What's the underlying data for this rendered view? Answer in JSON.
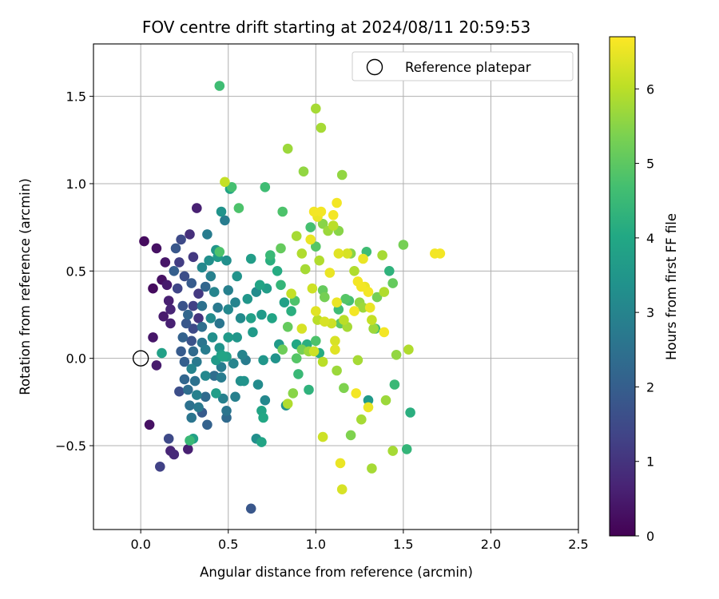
{
  "chart_data": {
    "type": "scatter",
    "title": "FOV centre drift starting at 2024/08/11 20:59:53",
    "xlabel": "Angular distance from reference (arcmin)",
    "ylabel": "Rotation from reference (arcmin)",
    "xlim": [
      -0.27,
      2.5
    ],
    "ylim": [
      -0.98,
      1.8
    ],
    "xticks": [
      "0.0",
      "0.5",
      "1.0",
      "1.5",
      "2.0",
      "2.5"
    ],
    "yticks": [
      "−0.5",
      "0.0",
      "0.5",
      "1.0",
      "1.5"
    ],
    "grid": true,
    "legend": {
      "position": "upper-right",
      "entries": [
        "Reference platepar"
      ]
    },
    "reference_point": {
      "x": 0.0,
      "y": 0.0
    },
    "colorbar": {
      "label": "Hours from first FF file",
      "min": 0,
      "max": 6.7,
      "ticks": [
        "0",
        "1",
        "2",
        "3",
        "4",
        "5",
        "6"
      ],
      "colormap": "viridis"
    },
    "points": [
      {
        "x": 0.02,
        "y": 0.67,
        "h": 0.2
      },
      {
        "x": 0.09,
        "y": 0.63,
        "h": 0.3
      },
      {
        "x": 0.14,
        "y": 0.55,
        "h": 0.4
      },
      {
        "x": 0.12,
        "y": 0.45,
        "h": 0.3
      },
      {
        "x": 0.15,
        "y": 0.42,
        "h": 0.5
      },
      {
        "x": 0.07,
        "y": 0.4,
        "h": 0.2
      },
      {
        "x": 0.16,
        "y": 0.33,
        "h": 0.6
      },
      {
        "x": 0.17,
        "y": 0.28,
        "h": 0.7
      },
      {
        "x": 0.13,
        "y": 0.24,
        "h": 0.5
      },
      {
        "x": 0.17,
        "y": 0.2,
        "h": 0.6
      },
      {
        "x": 0.07,
        "y": 0.12,
        "h": 0.4
      },
      {
        "x": 0.09,
        "y": -0.04,
        "h": 0.5
      },
      {
        "x": 0.05,
        "y": -0.38,
        "h": 0.3
      },
      {
        "x": 0.17,
        "y": -0.53,
        "h": 0.7
      },
      {
        "x": 0.19,
        "y": -0.55,
        "h": 0.8
      },
      {
        "x": 0.27,
        "y": -0.52,
        "h": 0.6
      },
      {
        "x": 0.11,
        "y": -0.62,
        "h": 1.3
      },
      {
        "x": 0.16,
        "y": -0.46,
        "h": 1.5
      },
      {
        "x": 0.32,
        "y": 0.86,
        "h": 0.6
      },
      {
        "x": 0.28,
        "y": 0.71,
        "h": 0.9
      },
      {
        "x": 0.23,
        "y": 0.68,
        "h": 1.5
      },
      {
        "x": 0.2,
        "y": 0.63,
        "h": 1.8
      },
      {
        "x": 0.22,
        "y": 0.55,
        "h": 1.2
      },
      {
        "x": 0.3,
        "y": 0.58,
        "h": 1.1
      },
      {
        "x": 0.19,
        "y": 0.5,
        "h": 2.0
      },
      {
        "x": 0.25,
        "y": 0.47,
        "h": 1.6
      },
      {
        "x": 0.21,
        "y": 0.4,
        "h": 1.4
      },
      {
        "x": 0.29,
        "y": 0.43,
        "h": 1.9
      },
      {
        "x": 0.33,
        "y": 0.37,
        "h": 1.1
      },
      {
        "x": 0.24,
        "y": 0.3,
        "h": 1.7
      },
      {
        "x": 0.3,
        "y": 0.3,
        "h": 1.3
      },
      {
        "x": 0.27,
        "y": 0.25,
        "h": 2.2
      },
      {
        "x": 0.33,
        "y": 0.23,
        "h": 1.0
      },
      {
        "x": 0.26,
        "y": 0.2,
        "h": 1.8
      },
      {
        "x": 0.3,
        "y": 0.17,
        "h": 1.5
      },
      {
        "x": 0.35,
        "y": 0.18,
        "h": 2.4
      },
      {
        "x": 0.24,
        "y": 0.12,
        "h": 2.1
      },
      {
        "x": 0.29,
        "y": 0.1,
        "h": 1.7
      },
      {
        "x": 0.35,
        "y": 0.09,
        "h": 2.6
      },
      {
        "x": 0.23,
        "y": 0.04,
        "h": 1.9
      },
      {
        "x": 0.3,
        "y": 0.04,
        "h": 2.3
      },
      {
        "x": 0.37,
        "y": 0.05,
        "h": 2.8
      },
      {
        "x": 0.25,
        "y": -0.02,
        "h": 2.0
      },
      {
        "x": 0.32,
        "y": -0.02,
        "h": 2.7
      },
      {
        "x": 0.29,
        "y": -0.06,
        "h": 3.0
      },
      {
        "x": 0.25,
        "y": -0.12,
        "h": 2.2
      },
      {
        "x": 0.31,
        "y": -0.13,
        "h": 2.5
      },
      {
        "x": 0.37,
        "y": -0.1,
        "h": 3.1
      },
      {
        "x": 0.22,
        "y": -0.19,
        "h": 1.6
      },
      {
        "x": 0.27,
        "y": -0.18,
        "h": 2.4
      },
      {
        "x": 0.32,
        "y": -0.21,
        "h": 2.9
      },
      {
        "x": 0.37,
        "y": -0.22,
        "h": 2.3
      },
      {
        "x": 0.28,
        "y": -0.27,
        "h": 2.5
      },
      {
        "x": 0.33,
        "y": -0.28,
        "h": 2.7
      },
      {
        "x": 0.29,
        "y": -0.34,
        "h": 2.6
      },
      {
        "x": 0.35,
        "y": -0.31,
        "h": 1.9
      },
      {
        "x": 0.38,
        "y": -0.38,
        "h": 2.1
      },
      {
        "x": 0.3,
        "y": -0.46,
        "h": 3.8
      },
      {
        "x": 0.35,
        "y": 0.3,
        "h": 2.5
      },
      {
        "x": 0.37,
        "y": 0.41,
        "h": 2.2
      },
      {
        "x": 0.4,
        "y": 0.47,
        "h": 2.9
      },
      {
        "x": 0.35,
        "y": 0.52,
        "h": 3.1
      },
      {
        "x": 0.39,
        "y": 0.56,
        "h": 3.3
      },
      {
        "x": 0.43,
        "y": 0.62,
        "h": 3.5
      },
      {
        "x": 0.38,
        "y": 0.71,
        "h": 2.8
      },
      {
        "x": 0.44,
        "y": 0.58,
        "h": 3.6
      },
      {
        "x": 0.42,
        "y": 0.38,
        "h": 3.0
      },
      {
        "x": 0.44,
        "y": 0.29,
        "h": 2.7
      },
      {
        "x": 0.4,
        "y": 0.23,
        "h": 3.2
      },
      {
        "x": 0.45,
        "y": 0.2,
        "h": 2.6
      },
      {
        "x": 0.41,
        "y": 0.12,
        "h": 3.3
      },
      {
        "x": 0.45,
        "y": 0.06,
        "h": 3.4
      },
      {
        "x": 0.43,
        "y": -0.01,
        "h": 3.6
      },
      {
        "x": 0.47,
        "y": 0.01,
        "h": 3.9
      },
      {
        "x": 0.42,
        "y": -0.1,
        "h": 2.4
      },
      {
        "x": 0.46,
        "y": -0.11,
        "h": 2.8
      },
      {
        "x": 0.43,
        "y": -0.2,
        "h": 3.7
      },
      {
        "x": 0.47,
        "y": -0.23,
        "h": 2.9
      },
      {
        "x": 0.49,
        "y": -0.3,
        "h": 2.6
      },
      {
        "x": 0.49,
        "y": -0.34,
        "h": 2.3
      },
      {
        "x": 0.49,
        "y": 0.01,
        "h": 3.8
      },
      {
        "x": 0.5,
        "y": 0.12,
        "h": 3.6
      },
      {
        "x": 0.5,
        "y": 0.28,
        "h": 3.1
      },
      {
        "x": 0.5,
        "y": 0.39,
        "h": 2.9
      },
      {
        "x": 0.49,
        "y": 0.56,
        "h": 3.3
      },
      {
        "x": 0.48,
        "y": 0.79,
        "h": 2.8
      },
      {
        "x": 0.46,
        "y": 0.84,
        "h": 3.4
      },
      {
        "x": 0.51,
        "y": 0.97,
        "h": 3.9
      },
      {
        "x": 0.48,
        "y": 1.01,
        "h": 6.1
      },
      {
        "x": 0.52,
        "y": 0.98,
        "h": 4.7
      },
      {
        "x": 0.56,
        "y": 0.86,
        "h": 4.8
      },
      {
        "x": 0.45,
        "y": 1.56,
        "h": 4.6
      },
      {
        "x": 0.45,
        "y": 0.61,
        "h": 4.8
      },
      {
        "x": 0.55,
        "y": 0.47,
        "h": 3.4
      },
      {
        "x": 0.54,
        "y": 0.32,
        "h": 3.0
      },
      {
        "x": 0.57,
        "y": 0.23,
        "h": 3.2
      },
      {
        "x": 0.55,
        "y": 0.12,
        "h": 3.5
      },
      {
        "x": 0.53,
        "y": -0.03,
        "h": 3.0
      },
      {
        "x": 0.57,
        "y": -0.13,
        "h": 3.3
      },
      {
        "x": 0.54,
        "y": -0.22,
        "h": 2.9
      },
      {
        "x": 0.59,
        "y": -0.13,
        "h": 3.4
      },
      {
        "x": 0.61,
        "y": 0.34,
        "h": 3.5
      },
      {
        "x": 0.63,
        "y": 0.57,
        "h": 3.7
      },
      {
        "x": 0.63,
        "y": 0.23,
        "h": 3.8
      },
      {
        "x": 0.64,
        "y": 0.15,
        "h": 3.6
      },
      {
        "x": 0.66,
        "y": 0.38,
        "h": 3.2
      },
      {
        "x": 0.68,
        "y": 0.42,
        "h": 3.9
      },
      {
        "x": 0.69,
        "y": 0.25,
        "h": 3.6
      },
      {
        "x": 0.72,
        "y": 0.4,
        "h": 3.7
      },
      {
        "x": 0.74,
        "y": 0.56,
        "h": 4.2
      },
      {
        "x": 0.74,
        "y": 0.59,
        "h": 4.5
      },
      {
        "x": 0.71,
        "y": 0.98,
        "h": 4.6
      },
      {
        "x": 0.75,
        "y": 0.23,
        "h": 3.9
      },
      {
        "x": 0.7,
        "y": -0.01,
        "h": 3.5
      },
      {
        "x": 0.6,
        "y": -0.01,
        "h": 2.8
      },
      {
        "x": 0.58,
        "y": 0.02,
        "h": 3.0
      },
      {
        "x": 0.69,
        "y": -0.3,
        "h": 3.9
      },
      {
        "x": 0.7,
        "y": -0.34,
        "h": 4.0
      },
      {
        "x": 0.71,
        "y": -0.24,
        "h": 3.1
      },
      {
        "x": 0.66,
        "y": -0.46,
        "h": 3.3
      },
      {
        "x": 0.69,
        "y": -0.48,
        "h": 3.9
      },
      {
        "x": 0.63,
        "y": -0.86,
        "h": 1.8
      },
      {
        "x": 0.67,
        "y": -0.15,
        "h": 3.2
      },
      {
        "x": 0.78,
        "y": 0.5,
        "h": 4.1
      },
      {
        "x": 0.8,
        "y": 0.63,
        "h": 5.1
      },
      {
        "x": 0.8,
        "y": 0.42,
        "h": 4.4
      },
      {
        "x": 0.81,
        "y": 0.84,
        "h": 4.8
      },
      {
        "x": 0.77,
        "y": 0.0,
        "h": 3.4
      },
      {
        "x": 0.79,
        "y": 0.08,
        "h": 3.6
      },
      {
        "x": 0.81,
        "y": 0.05,
        "h": 5.2
      },
      {
        "x": 0.82,
        "y": 0.32,
        "h": 3.8
      },
      {
        "x": 0.84,
        "y": 0.18,
        "h": 5.1
      },
      {
        "x": 0.86,
        "y": 0.27,
        "h": 4.2
      },
      {
        "x": 0.83,
        "y": -0.27,
        "h": 3.4
      },
      {
        "x": 0.84,
        "y": -0.26,
        "h": 5.9
      },
      {
        "x": 0.84,
        "y": 1.2,
        "h": 5.7
      },
      {
        "x": 0.86,
        "y": 0.37,
        "h": 6.1
      },
      {
        "x": 0.87,
        "y": -0.2,
        "h": 5.5
      },
      {
        "x": 0.88,
        "y": 0.33,
        "h": 4.8
      },
      {
        "x": 0.89,
        "y": 0.08,
        "h": 4.0
      },
      {
        "x": 0.89,
        "y": 0.0,
        "h": 4.9
      },
      {
        "x": 0.89,
        "y": 0.7,
        "h": 5.8
      },
      {
        "x": 0.9,
        "y": -0.09,
        "h": 4.5
      },
      {
        "x": 0.92,
        "y": 0.17,
        "h": 6.3
      },
      {
        "x": 0.92,
        "y": 0.05,
        "h": 5.3
      },
      {
        "x": 0.92,
        "y": 0.6,
        "h": 5.9
      },
      {
        "x": 0.93,
        "y": 1.07,
        "h": 5.6
      },
      {
        "x": 0.94,
        "y": 0.51,
        "h": 5.8
      },
      {
        "x": 0.95,
        "y": 0.08,
        "h": 4.2
      },
      {
        "x": 0.96,
        "y": 0.04,
        "h": 5.7
      },
      {
        "x": 0.96,
        "y": -0.18,
        "h": 4.3
      },
      {
        "x": 0.97,
        "y": 0.75,
        "h": 4.7
      },
      {
        "x": 0.97,
        "y": 0.68,
        "h": 6.5
      },
      {
        "x": 0.98,
        "y": 0.4,
        "h": 6.2
      },
      {
        "x": 0.99,
        "y": 0.84,
        "h": 6.6
      },
      {
        "x": 0.99,
        "y": 0.04,
        "h": 6.2
      },
      {
        "x": 1.0,
        "y": 0.64,
        "h": 4.9
      },
      {
        "x": 1.0,
        "y": 0.1,
        "h": 4.8
      },
      {
        "x": 1.0,
        "y": 0.27,
        "h": 6.4
      },
      {
        "x": 1.0,
        "y": 1.43,
        "h": 5.8
      },
      {
        "x": 1.01,
        "y": 0.81,
        "h": 6.5
      },
      {
        "x": 1.01,
        "y": 0.22,
        "h": 6.0
      },
      {
        "x": 1.02,
        "y": 0.03,
        "h": 4.1
      },
      {
        "x": 1.02,
        "y": 0.56,
        "h": 5.9
      },
      {
        "x": 1.03,
        "y": 0.84,
        "h": 6.6
      },
      {
        "x": 1.03,
        "y": 1.32,
        "h": 5.8
      },
      {
        "x": 1.04,
        "y": 0.39,
        "h": 5.1
      },
      {
        "x": 1.04,
        "y": -0.02,
        "h": 6.0
      },
      {
        "x": 1.04,
        "y": 0.77,
        "h": 5.5
      },
      {
        "x": 1.04,
        "y": -0.45,
        "h": 6.2
      },
      {
        "x": 1.05,
        "y": 0.21,
        "h": 6.3
      },
      {
        "x": 1.05,
        "y": 0.35,
        "h": 5.3
      },
      {
        "x": 1.07,
        "y": 0.73,
        "h": 5.7
      },
      {
        "x": 1.08,
        "y": 0.49,
        "h": 6.5
      },
      {
        "x": 1.09,
        "y": 0.2,
        "h": 6.2
      },
      {
        "x": 1.1,
        "y": 0.82,
        "h": 6.6
      },
      {
        "x": 1.1,
        "y": 0.76,
        "h": 6.0
      },
      {
        "x": 1.11,
        "y": 0.05,
        "h": 6.4
      },
      {
        "x": 1.11,
        "y": 0.1,
        "h": 6.3
      },
      {
        "x": 1.12,
        "y": -0.07,
        "h": 5.7
      },
      {
        "x": 1.12,
        "y": 0.89,
        "h": 6.6
      },
      {
        "x": 1.12,
        "y": 0.32,
        "h": 6.5
      },
      {
        "x": 1.13,
        "y": 0.6,
        "h": 6.4
      },
      {
        "x": 1.13,
        "y": 0.28,
        "h": 4.6
      },
      {
        "x": 1.13,
        "y": 0.73,
        "h": 5.5
      },
      {
        "x": 1.14,
        "y": 0.2,
        "h": 5.0
      },
      {
        "x": 1.14,
        "y": -0.6,
        "h": 6.5
      },
      {
        "x": 1.15,
        "y": -0.75,
        "h": 6.3
      },
      {
        "x": 1.15,
        "y": 1.05,
        "h": 5.6
      },
      {
        "x": 1.16,
        "y": 0.22,
        "h": 6.0
      },
      {
        "x": 1.16,
        "y": -0.17,
        "h": 5.4
      },
      {
        "x": 1.17,
        "y": 0.34,
        "h": 4.9
      },
      {
        "x": 1.18,
        "y": 0.6,
        "h": 6.3
      },
      {
        "x": 1.18,
        "y": 0.18,
        "h": 5.8
      },
      {
        "x": 1.19,
        "y": 0.33,
        "h": 4.7
      },
      {
        "x": 1.2,
        "y": -0.44,
        "h": 5.4
      },
      {
        "x": 1.2,
        "y": 0.6,
        "h": 5.5
      },
      {
        "x": 1.22,
        "y": 0.5,
        "h": 5.9
      },
      {
        "x": 1.22,
        "y": 0.27,
        "h": 6.6
      },
      {
        "x": 1.23,
        "y": -0.2,
        "h": 6.6
      },
      {
        "x": 1.24,
        "y": 0.44,
        "h": 6.6
      },
      {
        "x": 1.24,
        "y": -0.01,
        "h": 5.8
      },
      {
        "x": 1.25,
        "y": 0.32,
        "h": 5.6
      },
      {
        "x": 1.26,
        "y": -0.35,
        "h": 5.8
      },
      {
        "x": 1.26,
        "y": 0.41,
        "h": 6.6
      },
      {
        "x": 1.27,
        "y": 0.57,
        "h": 6.5
      },
      {
        "x": 1.27,
        "y": 0.29,
        "h": 5.7
      },
      {
        "x": 1.28,
        "y": 0.41,
        "h": 6.5
      },
      {
        "x": 1.29,
        "y": 0.61,
        "h": 4.6
      },
      {
        "x": 1.3,
        "y": 0.38,
        "h": 6.6
      },
      {
        "x": 1.3,
        "y": -0.24,
        "h": 3.6
      },
      {
        "x": 1.3,
        "y": -0.28,
        "h": 6.5
      },
      {
        "x": 1.31,
        "y": 0.29,
        "h": 6.5
      },
      {
        "x": 1.32,
        "y": -0.63,
        "h": 5.8
      },
      {
        "x": 1.32,
        "y": 0.22,
        "h": 6.1
      },
      {
        "x": 1.33,
        "y": 0.17,
        "h": 5.7
      },
      {
        "x": 1.34,
        "y": 0.17,
        "h": 4.6
      },
      {
        "x": 1.35,
        "y": 0.35,
        "h": 5.3
      },
      {
        "x": 1.38,
        "y": 0.59,
        "h": 5.8
      },
      {
        "x": 1.39,
        "y": 0.15,
        "h": 6.6
      },
      {
        "x": 1.39,
        "y": 0.38,
        "h": 5.9
      },
      {
        "x": 1.4,
        "y": -0.24,
        "h": 5.7
      },
      {
        "x": 1.42,
        "y": 0.5,
        "h": 4.3
      },
      {
        "x": 1.44,
        "y": 0.43,
        "h": 5.1
      },
      {
        "x": 1.44,
        "y": -0.53,
        "h": 5.8
      },
      {
        "x": 1.45,
        "y": -0.15,
        "h": 4.5
      },
      {
        "x": 1.46,
        "y": 0.02,
        "h": 5.6
      },
      {
        "x": 1.5,
        "y": 0.65,
        "h": 5.3
      },
      {
        "x": 1.52,
        "y": -0.52,
        "h": 4.4
      },
      {
        "x": 1.53,
        "y": 0.05,
        "h": 5.9
      },
      {
        "x": 1.54,
        "y": -0.31,
        "h": 4.2
      },
      {
        "x": 1.68,
        "y": 0.6,
        "h": 6.6
      },
      {
        "x": 1.71,
        "y": 0.6,
        "h": 6.6
      },
      {
        "x": 0.12,
        "y": 0.03,
        "h": 3.8
      },
      {
        "x": 0.28,
        "y": -0.47,
        "h": 4.5
      },
      {
        "x": 0.46,
        "y": 0.02,
        "h": 3.8
      },
      {
        "x": 0.46,
        "y": -0.05,
        "h": 2.8
      }
    ]
  }
}
